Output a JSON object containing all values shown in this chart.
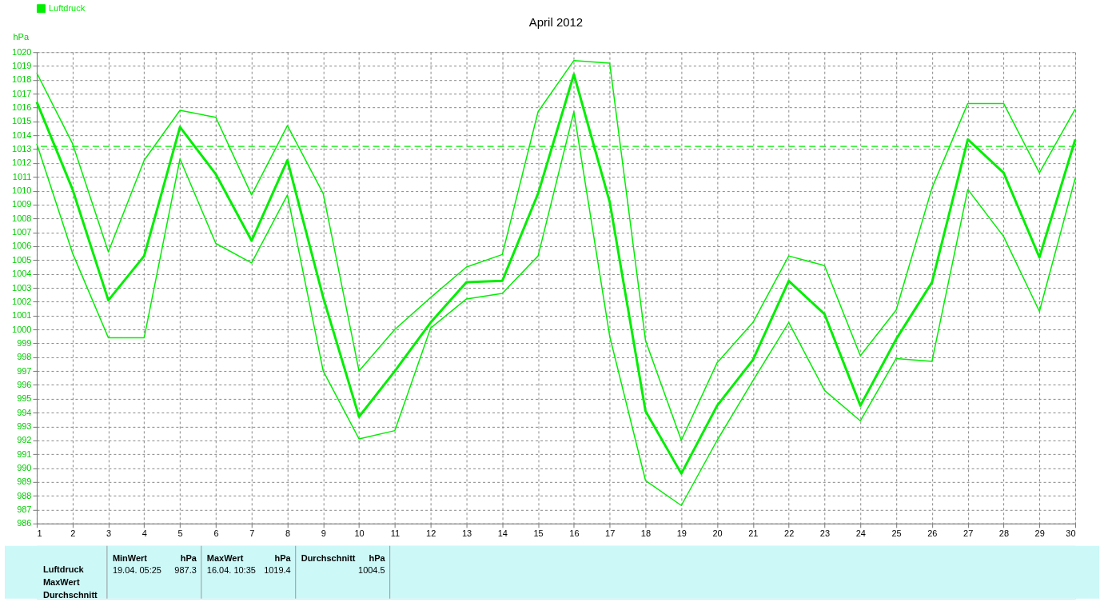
{
  "chart_data": {
    "type": "line",
    "title": "April 2012",
    "ylabel": "hPa",
    "x": [
      1,
      2,
      3,
      4,
      5,
      6,
      7,
      8,
      9,
      10,
      11,
      12,
      13,
      14,
      15,
      16,
      17,
      18,
      19,
      20,
      21,
      22,
      23,
      24,
      25,
      26,
      27,
      28,
      29,
      30
    ],
    "series": [
      {
        "color": "#00ee00",
        "values": [
          1018.5,
          1013.4,
          1005.6,
          1012.2,
          1015.8,
          1015.3,
          1009.7,
          1014.7,
          1009.8,
          997.0,
          1000.0,
          1002.3,
          1004.5,
          1005.4,
          1015.7,
          1019.4,
          1019.2,
          999.2,
          992.0,
          997.6,
          1000.5,
          1005.3,
          1004.6,
          998.1,
          1001.4,
          1010.2,
          1016.3,
          1016.3,
          1011.3,
          1015.9
        ]
      },
      {
        "name": "Luftdruck",
        "color": "#00ee00",
        "values": [
          1016.4,
          1010.1,
          1002.1,
          1005.3,
          1014.6,
          1011.2,
          1006.4,
          1012.2,
          1002.3,
          993.7,
          997.0,
          1000.5,
          1003.4,
          1003.5,
          1009.8,
          1018.4,
          1009.2,
          994.1,
          989.6,
          994.5,
          997.8,
          1003.5,
          1001.1,
          994.5,
          999.3,
          1003.4,
          1013.7,
          1011.3,
          1005.2,
          1013.7
        ]
      },
      {
        "color": "#00ee00",
        "values": [
          1013.4,
          1005.5,
          999.4,
          999.4,
          1012.3,
          1006.2,
          1004.8,
          1009.7,
          997.0,
          992.1,
          992.7,
          1000.1,
          1002.2,
          1002.6,
          1005.3,
          1015.7,
          999.5,
          989.1,
          987.3,
          992.0,
          996.3,
          1000.5,
          995.6,
          993.4,
          997.9,
          997.7,
          1010.1,
          1006.7,
          1001.3,
          1010.9
        ]
      }
    ],
    "xlim": [
      1,
      30
    ],
    "xticks": [
      1,
      2,
      3,
      4,
      5,
      6,
      7,
      8,
      9,
      10,
      11,
      12,
      13,
      14,
      15,
      16,
      17,
      18,
      19,
      20,
      21,
      22,
      23,
      24,
      25,
      26,
      27,
      28,
      29,
      30
    ],
    "ylim": [
      986,
      1020
    ],
    "yticks": [
      986,
      987,
      988,
      989,
      990,
      991,
      992,
      993,
      994,
      995,
      996,
      997,
      998,
      999,
      1000,
      1001,
      1002,
      1003,
      1004,
      1005,
      1006,
      1007,
      1008,
      1009,
      1010,
      1011,
      1012,
      1013,
      1014,
      1015,
      1016,
      1017,
      1018,
      1019,
      1020
    ],
    "ref_lines": [
      {
        "axis": "y",
        "value": 1013.2,
        "color": "#00ee00",
        "line_style": "dashed"
      }
    ],
    "grid": true,
    "legend": "top left",
    "marker": "none",
    "line_style": "solid",
    "annotations": [
      "Luftdruck",
      "MaxWert",
      "Durchschnitt",
      "MinWert",
      "hPa",
      "19.04.  05:25",
      "987.3",
      "MaxWert",
      "hPa",
      "16.04.  10:35",
      "1019.4",
      "Durchschnitt",
      "hPa",
      "1004.5"
    ]
  }
}
